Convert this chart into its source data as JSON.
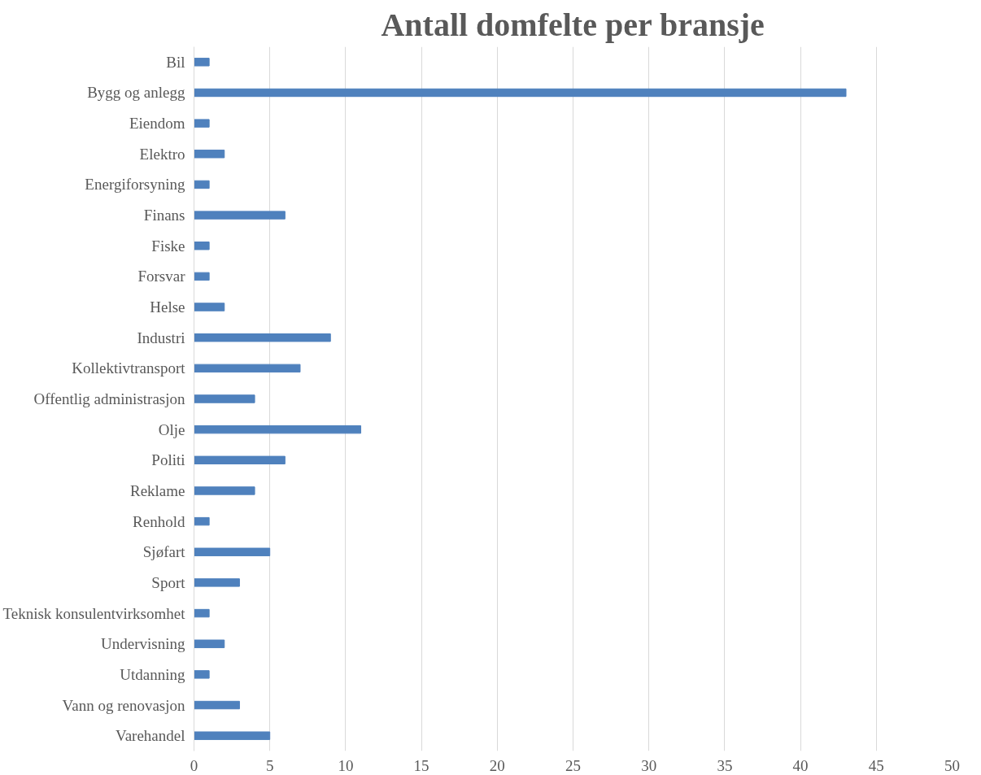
{
  "chart_data": {
    "type": "bar",
    "orientation": "horizontal",
    "title": "Antall domfelte per bransje",
    "categories": [
      "Bil",
      "Bygg og anlegg",
      "Eiendom",
      "Elektro",
      "Energiforsyning",
      "Finans",
      "Fiske",
      "Forsvar",
      "Helse",
      "Industri",
      "Kollektivtransport",
      "Offentlig administrasjon",
      "Olje",
      "Politi",
      "Reklame",
      "Renhold",
      "Sjøfart",
      "Sport",
      "Teknisk konsulentvirksomhet",
      "Undervisning",
      "Utdanning",
      "Vann og renovasjon",
      "Varehandel"
    ],
    "values": [
      1,
      43,
      1,
      2,
      1,
      6,
      1,
      1,
      2,
      9,
      7,
      4,
      11,
      6,
      4,
      1,
      5,
      3,
      1,
      2,
      1,
      3,
      5
    ],
    "color": "#4f81bd",
    "xlim": [
      0,
      50
    ],
    "xticks": [
      0,
      5,
      10,
      15,
      20,
      25,
      30,
      35,
      40,
      45,
      50
    ],
    "grid": "x"
  }
}
